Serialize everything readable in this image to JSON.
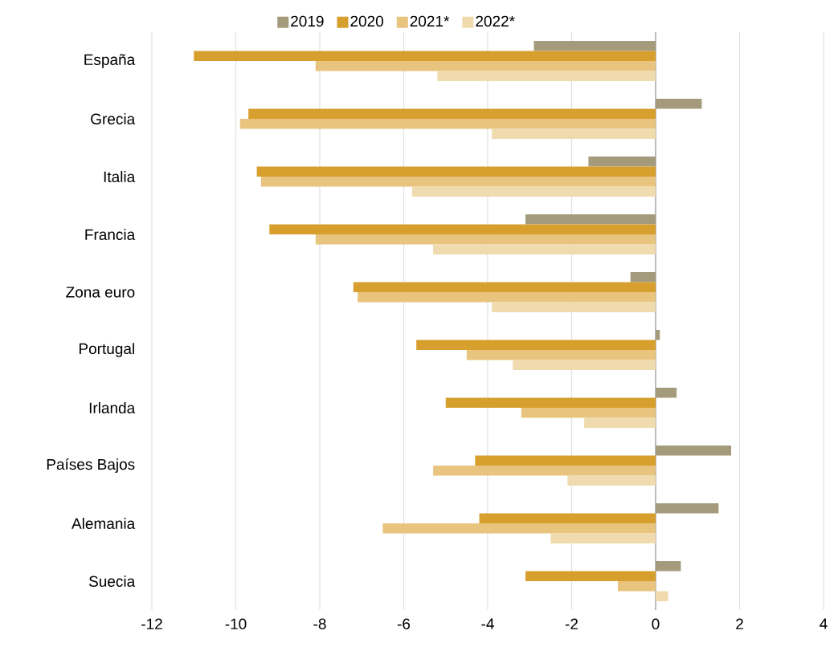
{
  "chart_data": {
    "type": "bar",
    "orientation": "horizontal",
    "categories": [
      "España",
      "Grecia",
      "Italia",
      "Francia",
      "Zona euro",
      "Portugal",
      "Irlanda",
      "Países Bajos",
      "Alemania",
      "Suecia"
    ],
    "series": [
      {
        "name": "2019",
        "color": "#a39b7b",
        "values": [
          -2.9,
          1.1,
          -1.6,
          -3.1,
          -0.6,
          0.1,
          0.5,
          1.8,
          1.5,
          0.6
        ]
      },
      {
        "name": "2020",
        "color": "#d69f2e",
        "values": [
          -11.0,
          -9.7,
          -9.5,
          -9.2,
          -7.2,
          -5.7,
          -5.0,
          -4.3,
          -4.2,
          -3.1
        ]
      },
      {
        "name": "2021*",
        "color": "#e8c47f",
        "values": [
          -8.1,
          -9.9,
          -9.4,
          -8.1,
          -7.1,
          -4.5,
          -3.2,
          -5.3,
          -6.5,
          -0.9
        ]
      },
      {
        "name": "2022*",
        "color": "#f0dbae",
        "values": [
          -5.2,
          -3.9,
          -5.8,
          -5.3,
          -3.9,
          -3.4,
          -1.7,
          -2.1,
          -2.5,
          0.3
        ]
      }
    ],
    "xlim": [
      -12,
      4
    ],
    "xticks": [
      -12,
      -10,
      -8,
      -6,
      -4,
      -2,
      0,
      2,
      4
    ],
    "grid": "x",
    "legend": "top"
  }
}
